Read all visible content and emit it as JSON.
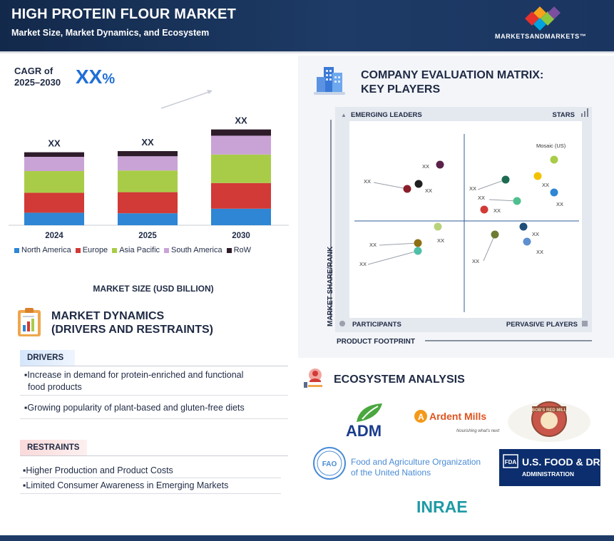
{
  "header": {
    "title": "HIGH PROTEIN FLOUR MARKET",
    "subtitle": "Market Size, Market Dynamics, and Ecosystem",
    "brand": "MARKETSANDMARKETS™"
  },
  "cagr": {
    "label_line1": "CAGR of",
    "label_line2": "2025–2030",
    "value": "XX",
    "unit": "%"
  },
  "chart_data": {
    "type": "bar",
    "stacked": true,
    "categories": [
      "2024",
      "2025",
      "2030"
    ],
    "series": [
      {
        "name": "North America",
        "values": [
          22,
          21,
          29
        ],
        "color": "#2e86d4"
      },
      {
        "name": "Europe",
        "values": [
          35,
          37,
          45
        ],
        "color": "#d13a36"
      },
      {
        "name": "Asia Pacific",
        "values": [
          38,
          38,
          50
        ],
        "color": "#a9cc48"
      },
      {
        "name": "South America",
        "values": [
          25,
          25,
          33
        ],
        "color": "#c9a3d6"
      },
      {
        "name": "RoW",
        "values": [
          8,
          9,
          11
        ],
        "color": "#2e1c2b"
      }
    ],
    "data_labels": [
      "XX",
      "XX",
      "XX"
    ],
    "xlabel": "MARKET SIZE (USD BILLION)",
    "ylabel": "",
    "legend": "bottom",
    "grid": false
  },
  "market_dynamics": {
    "title_line1": "MARKET DYNAMICS",
    "title_line2": "(DRIVERS AND RESTRAINTS)",
    "drivers_label": "DRIVERS",
    "drivers": [
      {
        "line1": "▪Increase in demand for protein-enriched and functional",
        "line2": "food products"
      },
      {
        "line1": "▪Growing popularity of plant-based and gluten-free diets"
      }
    ],
    "restraints_label": "RESTRAINTS",
    "restraints": [
      "▪Higher Production and Product Costs",
      "▪Limited Consumer Awareness in Emerging Markets"
    ]
  },
  "evaluation_matrix": {
    "title_line1": "COMPANY EVALUATION MATRIX:",
    "title_line2": "KEY PLAYERS",
    "quadrants": {
      "top_left": "EMERGING LEADERS",
      "top_right": "STARS",
      "bottom_left": "PARTICIPANTS",
      "bottom_right": "PERVASIVE PLAYERS"
    },
    "y_axis": "MARKET SHARE/RANK",
    "x_axis": "PRODUCT FOOTPRINT",
    "players": [
      {
        "label": "Mosaic (US)",
        "color": "#a9cc48"
      },
      {
        "label": "XX",
        "color": "#f2c200"
      },
      {
        "label": "XX",
        "color": "#2e86d4"
      },
      {
        "label": "XX",
        "color": "#1d6b52"
      },
      {
        "label": "XX",
        "color": "#4fbf8f"
      },
      {
        "label": "XX",
        "color": "#d13a36"
      },
      {
        "label": "XX",
        "color": "#5b2148"
      },
      {
        "label": "XX",
        "color": "#1f1f1f"
      },
      {
        "label": "XX",
        "color": "#8a1f2a"
      },
      {
        "label": "XX",
        "color": "#b9d27a"
      },
      {
        "label": "XX",
        "color": "#1f4e79"
      },
      {
        "label": "XX",
        "color": "#6e7b32"
      },
      {
        "label": "XX",
        "color": "#5e8fd0"
      },
      {
        "label": "XX",
        "color": "#8c6f12"
      },
      {
        "label": "XX",
        "color": "#4fbfa8"
      }
    ]
  },
  "ecosystem": {
    "title": "ECOSYSTEM ANALYSIS",
    "logos": [
      {
        "name": "ADM",
        "text": "ADM"
      },
      {
        "name": "Ardent Mills",
        "text": "Ardent Mills",
        "tagline": "Nourishing what's next"
      },
      {
        "name": "Bob's Red Mill",
        "text": "BOB'S RED MILL"
      },
      {
        "name": "FAO",
        "text_line1": "Food and Agriculture Organization",
        "text_line2": "of the United Nations",
        "mark": "FAO"
      },
      {
        "name": "US FDA",
        "text_line1": "U.S. FOOD & DRUG",
        "text_line2": "ADMINISTRATION",
        "mark": "FDA"
      },
      {
        "name": "INRAE",
        "text": "INRAE"
      }
    ]
  },
  "colors": {
    "navy": "#1d3b66",
    "accent_blue": "#1f6fd8"
  }
}
